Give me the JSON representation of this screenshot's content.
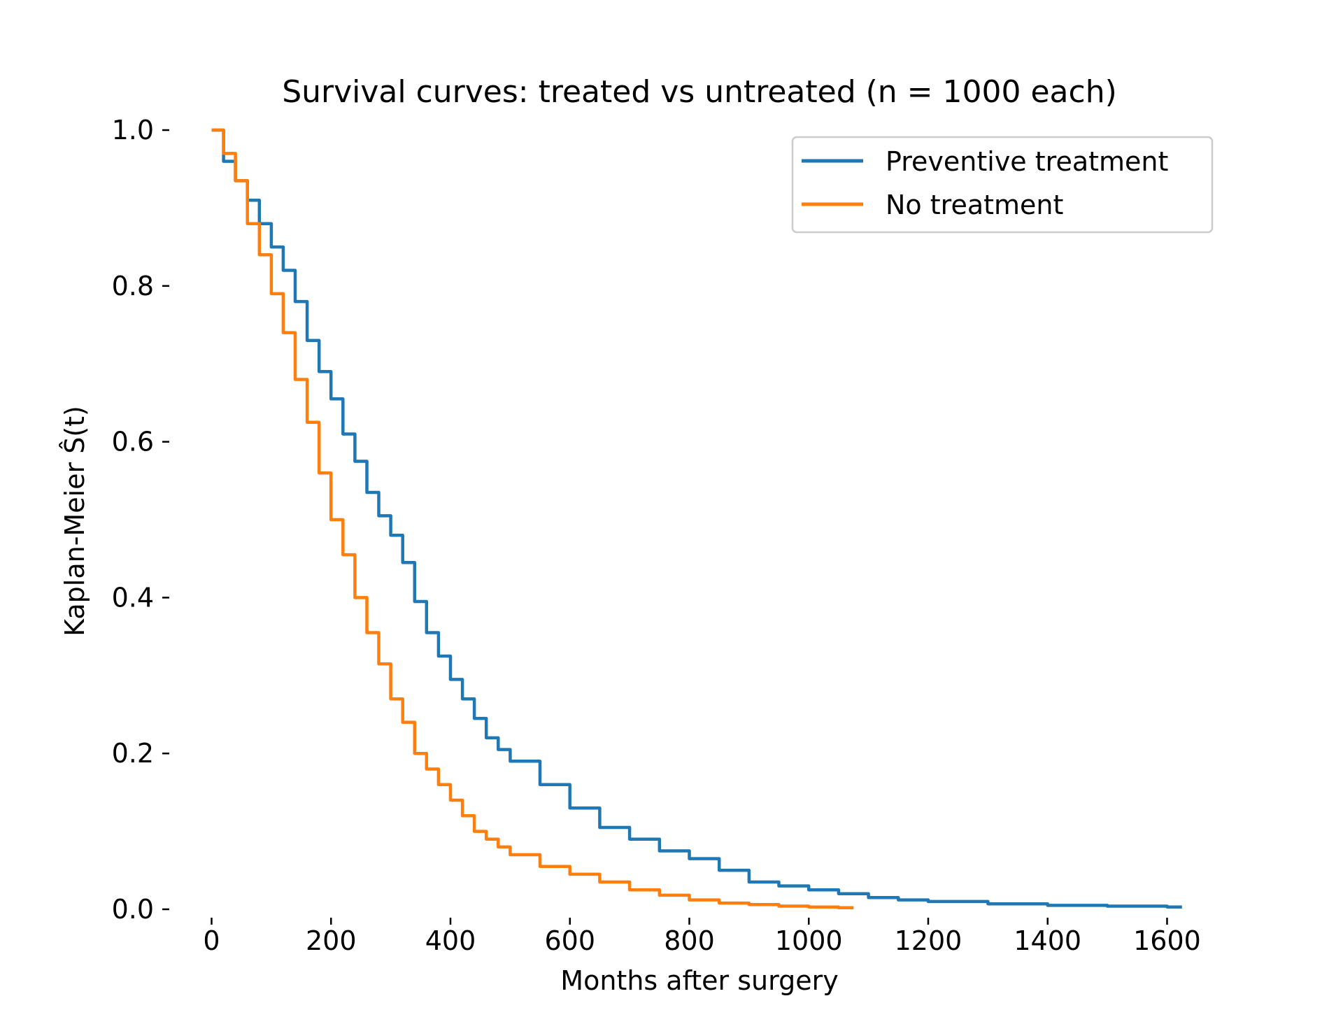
{
  "chart_data": {
    "type": "line",
    "title": "Survival curves: treated vs untreated (n = 1000 each)",
    "xlabel": "Months after surgery",
    "ylabel": "Kaplan-Meier Ŝ(t)",
    "xlim": [
      -24,
      1658
    ],
    "ylim": [
      0.0,
      1.0
    ],
    "x_ticks": [
      0,
      200,
      400,
      600,
      800,
      1000,
      1200,
      1400,
      1600
    ],
    "y_ticks": [
      0.0,
      0.2,
      0.4,
      0.6,
      0.8,
      1.0
    ],
    "x_tick_labels": [
      "0",
      "200",
      "400",
      "600",
      "800",
      "1000",
      "1200",
      "1400",
      "1600"
    ],
    "y_tick_labels": [
      "0.0",
      "0.2",
      "0.4",
      "0.6",
      "0.8",
      "1.0"
    ],
    "grid": false,
    "legend_position": "top-right",
    "series": [
      {
        "name": "Preventive treatment",
        "color": "#1f77b4",
        "x": [
          0,
          20,
          40,
          60,
          80,
          100,
          120,
          140,
          160,
          180,
          200,
          220,
          240,
          260,
          280,
          300,
          320,
          340,
          360,
          380,
          400,
          420,
          440,
          460,
          480,
          500,
          550,
          600,
          650,
          700,
          750,
          800,
          850,
          900,
          950,
          1000,
          1050,
          1100,
          1150,
          1200,
          1300,
          1400,
          1500,
          1600,
          1625
        ],
        "y": [
          1.0,
          0.96,
          0.935,
          0.91,
          0.88,
          0.85,
          0.82,
          0.78,
          0.73,
          0.69,
          0.655,
          0.61,
          0.575,
          0.535,
          0.505,
          0.48,
          0.445,
          0.395,
          0.355,
          0.325,
          0.295,
          0.27,
          0.245,
          0.22,
          0.205,
          0.19,
          0.16,
          0.13,
          0.105,
          0.09,
          0.075,
          0.065,
          0.05,
          0.035,
          0.03,
          0.025,
          0.02,
          0.015,
          0.012,
          0.01,
          0.007,
          0.005,
          0.004,
          0.003,
          0.003
        ]
      },
      {
        "name": "No treatment",
        "color": "#ff7f0e",
        "x": [
          0,
          20,
          40,
          60,
          80,
          100,
          120,
          140,
          160,
          180,
          200,
          220,
          240,
          260,
          280,
          300,
          320,
          340,
          360,
          380,
          400,
          420,
          440,
          460,
          480,
          500,
          550,
          600,
          650,
          700,
          750,
          800,
          850,
          900,
          950,
          1000,
          1050,
          1075
        ],
        "y": [
          1.0,
          0.97,
          0.935,
          0.88,
          0.84,
          0.79,
          0.74,
          0.68,
          0.625,
          0.56,
          0.5,
          0.455,
          0.4,
          0.355,
          0.315,
          0.27,
          0.24,
          0.2,
          0.18,
          0.16,
          0.14,
          0.12,
          0.1,
          0.09,
          0.08,
          0.07,
          0.055,
          0.045,
          0.035,
          0.025,
          0.018,
          0.012,
          0.008,
          0.006,
          0.004,
          0.003,
          0.002,
          0.002
        ]
      }
    ]
  }
}
